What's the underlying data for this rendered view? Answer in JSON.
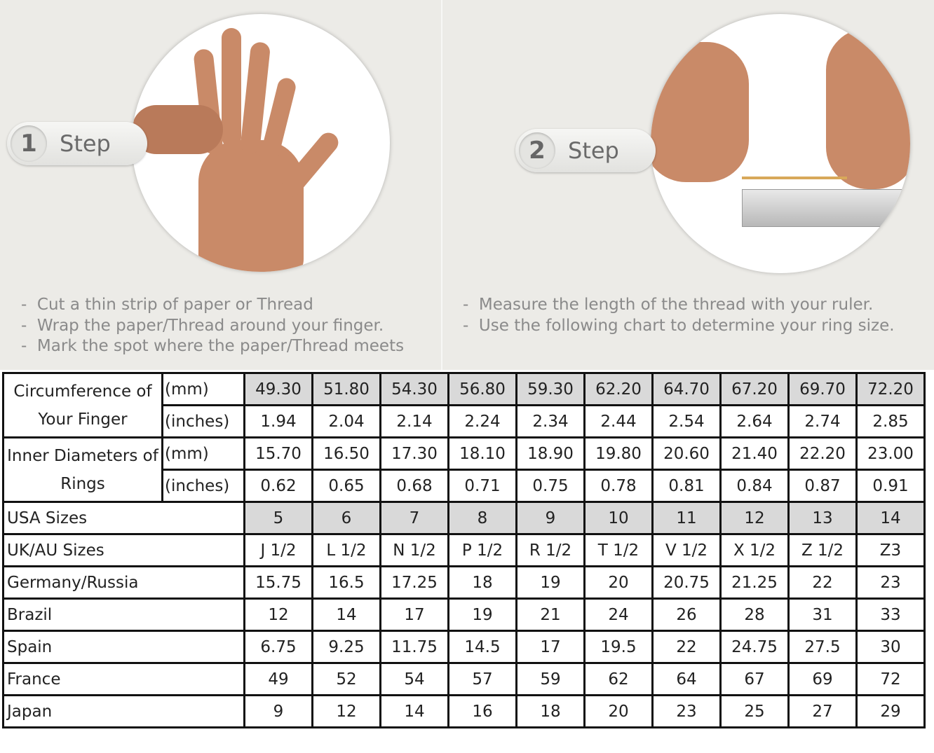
{
  "steps": [
    {
      "number": "1",
      "label": "Step",
      "instructions": [
        "Cut a thin strip of paper or Thread",
        "Wrap the paper/Thread around your finger.",
        "Mark the spot where the paper/Thread meets"
      ]
    },
    {
      "number": "2",
      "label": "Step",
      "instructions": [
        "Measure the length of the thread with your ruler.",
        "Use the following chart to determine your ring size."
      ]
    }
  ],
  "table": {
    "groups": [
      {
        "label": "Circumference of Your Finger",
        "rows": [
          {
            "unit": "(mm)",
            "values": [
              "49.30",
              "51.80",
              "54.30",
              "56.80",
              "59.30",
              "62.20",
              "64.70",
              "67.20",
              "69.70",
              "72.20"
            ],
            "highlight": true
          },
          {
            "unit": "(inches)",
            "values": [
              "1.94",
              "2.04",
              "2.14",
              "2.24",
              "2.34",
              "2.44",
              "2.54",
              "2.64",
              "2.74",
              "2.85"
            ],
            "highlight": false
          }
        ]
      },
      {
        "label": "Inner Diameters of Rings",
        "rows": [
          {
            "unit": "(mm)",
            "values": [
              "15.70",
              "16.50",
              "17.30",
              "18.10",
              "18.90",
              "19.80",
              "20.60",
              "21.40",
              "22.20",
              "23.00"
            ],
            "highlight": false
          },
          {
            "unit": "(inches)",
            "values": [
              "0.62",
              "0.65",
              "0.68",
              "0.71",
              "0.75",
              "0.78",
              "0.81",
              "0.84",
              "0.87",
              "0.91"
            ],
            "highlight": false
          }
        ]
      }
    ],
    "rows": [
      {
        "label": "USA Sizes",
        "values": [
          "5",
          "6",
          "7",
          "8",
          "9",
          "10",
          "11",
          "12",
          "13",
          "14"
        ],
        "highlight": true
      },
      {
        "label": "UK/AU Sizes",
        "values": [
          "J 1/2",
          "L 1/2",
          "N 1/2",
          "P 1/2",
          "R 1/2",
          "T 1/2",
          "V 1/2",
          "X 1/2",
          "Z 1/2",
          "Z3"
        ],
        "highlight": false
      },
      {
        "label": "Germany/Russia",
        "values": [
          "15.75",
          "16.5",
          "17.25",
          "18",
          "19",
          "20",
          "20.75",
          "21.25",
          "22",
          "23"
        ],
        "highlight": false
      },
      {
        "label": "Brazil",
        "values": [
          "12",
          "14",
          "17",
          "19",
          "21",
          "24",
          "26",
          "28",
          "31",
          "33"
        ],
        "highlight": false
      },
      {
        "label": "Spain",
        "values": [
          "6.75",
          "9.25",
          "11.75",
          "14.5",
          "17",
          "19.5",
          "22",
          "24.75",
          "27.5",
          "30"
        ],
        "highlight": false
      },
      {
        "label": "France",
        "values": [
          "49",
          "52",
          "54",
          "57",
          "59",
          "62",
          "64",
          "67",
          "69",
          "72"
        ],
        "highlight": false
      },
      {
        "label": "Japan",
        "values": [
          "9",
          "12",
          "14",
          "16",
          "18",
          "20",
          "23",
          "25",
          "27",
          "29"
        ],
        "highlight": false
      }
    ],
    "highlight_color": "#d9d9d9"
  }
}
